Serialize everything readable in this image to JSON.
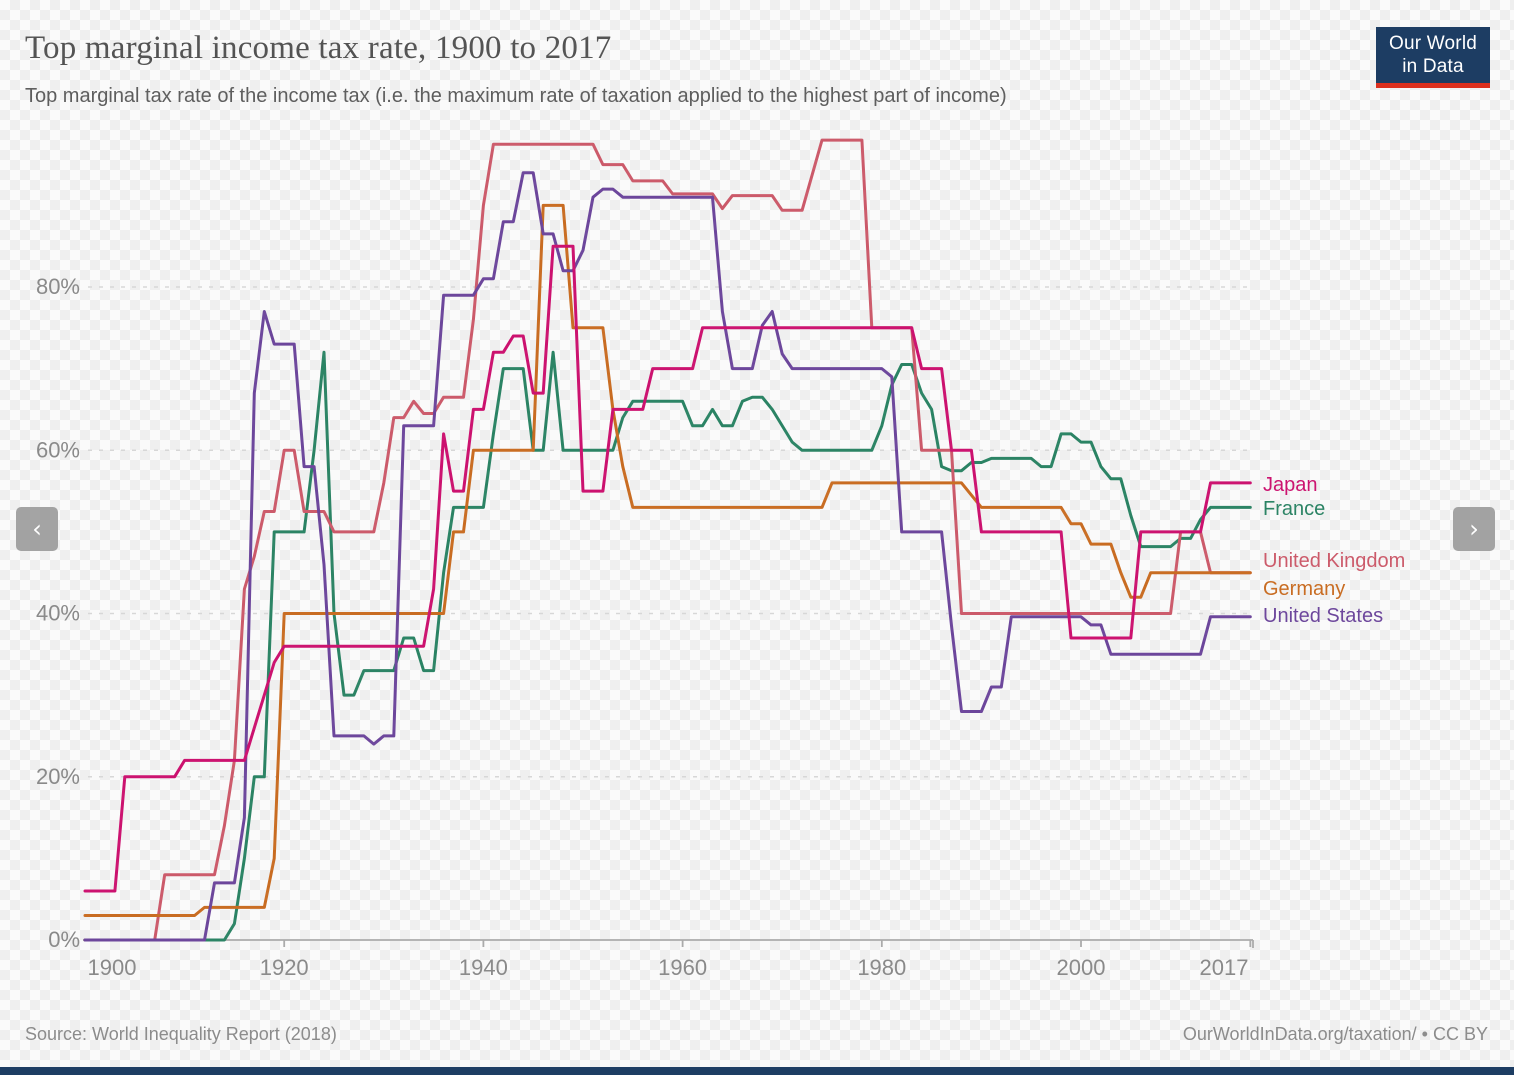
{
  "header": {
    "title": "Top marginal income tax rate, 1900 to 2017",
    "subtitle": "Top marginal tax rate of the income tax (i.e. the maximum rate of taxation applied to the highest part of income)"
  },
  "logo": {
    "line1": "Our World",
    "line2": "in Data",
    "bg_color": "#1d3d63",
    "accent_color": "#dc2f1e"
  },
  "controls": {
    "prev_icon": "‹",
    "next_icon": "›"
  },
  "footer": {
    "source": "Source: World Inequality Report (2018)",
    "credit": "OurWorldInData.org/taxation/ • CC BY"
  },
  "chart_data": {
    "type": "line",
    "title": "Top marginal income tax rate, 1900 to 2017",
    "xlabel": "",
    "ylabel": "",
    "x_range": [
      1900,
      2017
    ],
    "y_range": [
      0,
      100
    ],
    "grid": "dashed-horizontal",
    "legend_position": "end-of-line",
    "y_ticks": [
      {
        "value": 0,
        "label": "0%"
      },
      {
        "value": 20,
        "label": "20%"
      },
      {
        "value": 40,
        "label": "40%"
      },
      {
        "value": 60,
        "label": "60%"
      },
      {
        "value": 80,
        "label": "80%"
      }
    ],
    "x_ticks": [
      {
        "value": 1900,
        "label": "1900"
      },
      {
        "value": 1920,
        "label": "1920"
      },
      {
        "value": 1940,
        "label": "1940"
      },
      {
        "value": 1960,
        "label": "1960"
      },
      {
        "value": 1980,
        "label": "1980"
      },
      {
        "value": 2000,
        "label": "2000"
      },
      {
        "value": 2017,
        "label": "2017"
      }
    ],
    "series": [
      {
        "name": "Japan",
        "color": "#CC1370",
        "points": [
          [
            1900,
            6
          ],
          [
            1903,
            6
          ],
          [
            1904,
            20
          ],
          [
            1909,
            20
          ],
          [
            1910,
            22
          ],
          [
            1916,
            22
          ],
          [
            1917,
            26
          ],
          [
            1918,
            30
          ],
          [
            1919,
            34
          ],
          [
            1920,
            36
          ],
          [
            1934,
            36
          ],
          [
            1935,
            43
          ],
          [
            1936,
            62
          ],
          [
            1937,
            55
          ],
          [
            1938,
            55
          ],
          [
            1939,
            65
          ],
          [
            1940,
            65
          ],
          [
            1941,
            72
          ],
          [
            1942,
            72
          ],
          [
            1943,
            74
          ],
          [
            1944,
            74
          ],
          [
            1945,
            67
          ],
          [
            1946,
            67
          ],
          [
            1947,
            85
          ],
          [
            1949,
            85
          ],
          [
            1950,
            55
          ],
          [
            1952,
            55
          ],
          [
            1953,
            65
          ],
          [
            1956,
            65
          ],
          [
            1957,
            70
          ],
          [
            1961,
            70
          ],
          [
            1962,
            75
          ],
          [
            1983,
            75
          ],
          [
            1984,
            70
          ],
          [
            1986,
            70
          ],
          [
            1987,
            60
          ],
          [
            1989,
            60
          ],
          [
            1990,
            50
          ],
          [
            1998,
            50
          ],
          [
            1999,
            37
          ],
          [
            2005,
            37
          ],
          [
            2006,
            50
          ],
          [
            2012,
            50
          ],
          [
            2013,
            56
          ],
          [
            2017,
            56
          ]
        ]
      },
      {
        "name": "France",
        "color": "#2C8465",
        "points": [
          [
            1900,
            0
          ],
          [
            1914,
            0
          ],
          [
            1915,
            2
          ],
          [
            1916,
            10
          ],
          [
            1917,
            20
          ],
          [
            1918,
            20
          ],
          [
            1919,
            50
          ],
          [
            1922,
            50
          ],
          [
            1923,
            60
          ],
          [
            1924,
            72
          ],
          [
            1925,
            40
          ],
          [
            1926,
            30
          ],
          [
            1927,
            30
          ],
          [
            1928,
            33
          ],
          [
            1931,
            33
          ],
          [
            1932,
            37
          ],
          [
            1933,
            37
          ],
          [
            1934,
            33
          ],
          [
            1935,
            33
          ],
          [
            1936,
            45
          ],
          [
            1937,
            53
          ],
          [
            1940,
            53
          ],
          [
            1941,
            62
          ],
          [
            1942,
            70
          ],
          [
            1944,
            70
          ],
          [
            1945,
            60
          ],
          [
            1946,
            60
          ],
          [
            1947,
            72
          ],
          [
            1948,
            60
          ],
          [
            1953,
            60
          ],
          [
            1954,
            64
          ],
          [
            1955,
            66
          ],
          [
            1960,
            66
          ],
          [
            1961,
            63
          ],
          [
            1962,
            63
          ],
          [
            1963,
            65
          ],
          [
            1964,
            63
          ],
          [
            1965,
            63
          ],
          [
            1966,
            66
          ],
          [
            1967,
            66.5
          ],
          [
            1968,
            66.5
          ],
          [
            1969,
            65
          ],
          [
            1971,
            61
          ],
          [
            1972,
            60
          ],
          [
            1979,
            60
          ],
          [
            1980,
            63
          ],
          [
            1981,
            68
          ],
          [
            1982,
            70.5
          ],
          [
            1983,
            70.5
          ],
          [
            1984,
            67
          ],
          [
            1985,
            65
          ],
          [
            1986,
            58
          ],
          [
            1987,
            57.5
          ],
          [
            1988,
            57.5
          ],
          [
            1989,
            58.5
          ],
          [
            1990,
            58.5
          ],
          [
            1991,
            59
          ],
          [
            1995,
            59
          ],
          [
            1996,
            58
          ],
          [
            1997,
            58
          ],
          [
            1998,
            62
          ],
          [
            1999,
            62
          ],
          [
            2000,
            61
          ],
          [
            2001,
            61
          ],
          [
            2002,
            58
          ],
          [
            2003,
            56.5
          ],
          [
            2004,
            56.5
          ],
          [
            2005,
            52
          ],
          [
            2006,
            48.2
          ],
          [
            2009,
            48.2
          ],
          [
            2010,
            49.2
          ],
          [
            2011,
            49.2
          ],
          [
            2012,
            51.5
          ],
          [
            2013,
            53
          ],
          [
            2017,
            53
          ]
        ]
      },
      {
        "name": "United Kingdom",
        "color": "#CC5B6B",
        "points": [
          [
            1900,
            0
          ],
          [
            1907,
            0
          ],
          [
            1908,
            8
          ],
          [
            1913,
            8
          ],
          [
            1914,
            14
          ],
          [
            1915,
            22
          ],
          [
            1916,
            43
          ],
          [
            1917,
            47
          ],
          [
            1918,
            52.5
          ],
          [
            1919,
            52.5
          ],
          [
            1920,
            60
          ],
          [
            1921,
            60
          ],
          [
            1922,
            52.5
          ],
          [
            1924,
            52.5
          ],
          [
            1925,
            50
          ],
          [
            1929,
            50
          ],
          [
            1930,
            56
          ],
          [
            1931,
            64
          ],
          [
            1932,
            64
          ],
          [
            1933,
            66
          ],
          [
            1934,
            64.5
          ],
          [
            1935,
            64.5
          ],
          [
            1936,
            66.5
          ],
          [
            1938,
            66.5
          ],
          [
            1939,
            76
          ],
          [
            1940,
            90
          ],
          [
            1941,
            97.5
          ],
          [
            1951,
            97.5
          ],
          [
            1952,
            95
          ],
          [
            1954,
            95
          ],
          [
            1955,
            93
          ],
          [
            1958,
            93
          ],
          [
            1959,
            91.4
          ],
          [
            1963,
            91.4
          ],
          [
            1964,
            89.6
          ],
          [
            1965,
            91.2
          ],
          [
            1969,
            91.2
          ],
          [
            1970,
            89.4
          ],
          [
            1972,
            89.4
          ],
          [
            1974,
            98
          ],
          [
            1978,
            98
          ],
          [
            1979,
            75
          ],
          [
            1983,
            75
          ],
          [
            1984,
            60
          ],
          [
            1987,
            60
          ],
          [
            1988,
            40
          ],
          [
            2009,
            40
          ],
          [
            2010,
            50
          ],
          [
            2012,
            50
          ],
          [
            2013,
            45
          ],
          [
            2017,
            45
          ]
        ]
      },
      {
        "name": "Germany",
        "color": "#C96D23",
        "points": [
          [
            1900,
            3
          ],
          [
            1911,
            3
          ],
          [
            1912,
            4
          ],
          [
            1918,
            4
          ],
          [
            1919,
            10
          ],
          [
            1920,
            40
          ],
          [
            1936,
            40
          ],
          [
            1937,
            50
          ],
          [
            1938,
            50
          ],
          [
            1939,
            60
          ],
          [
            1945,
            60
          ],
          [
            1946,
            90
          ],
          [
            1948,
            90
          ],
          [
            1949,
            75
          ],
          [
            1952,
            75
          ],
          [
            1953,
            65
          ],
          [
            1954,
            58
          ],
          [
            1955,
            53
          ],
          [
            1974,
            53
          ],
          [
            1975,
            56
          ],
          [
            1988,
            56
          ],
          [
            1990,
            53
          ],
          [
            1998,
            53
          ],
          [
            1999,
            51
          ],
          [
            2000,
            51
          ],
          [
            2001,
            48.5
          ],
          [
            2003,
            48.5
          ],
          [
            2004,
            45
          ],
          [
            2005,
            42
          ],
          [
            2006,
            42
          ],
          [
            2007,
            45
          ],
          [
            2017,
            45
          ]
        ]
      },
      {
        "name": "United States",
        "color": "#6D479C",
        "points": [
          [
            1900,
            0
          ],
          [
            1912,
            0
          ],
          [
            1913,
            7
          ],
          [
            1915,
            7
          ],
          [
            1916,
            15
          ],
          [
            1917,
            67
          ],
          [
            1918,
            77
          ],
          [
            1919,
            73
          ],
          [
            1921,
            73
          ],
          [
            1922,
            58
          ],
          [
            1923,
            58
          ],
          [
            1924,
            46
          ],
          [
            1925,
            25
          ],
          [
            1928,
            25
          ],
          [
            1929,
            24
          ],
          [
            1930,
            25
          ],
          [
            1931,
            25
          ],
          [
            1932,
            63
          ],
          [
            1935,
            63
          ],
          [
            1936,
            79
          ],
          [
            1939,
            79
          ],
          [
            1940,
            81
          ],
          [
            1941,
            81
          ],
          [
            1942,
            88
          ],
          [
            1943,
            88
          ],
          [
            1944,
            94
          ],
          [
            1945,
            94
          ],
          [
            1946,
            86.5
          ],
          [
            1947,
            86.5
          ],
          [
            1948,
            82
          ],
          [
            1949,
            82
          ],
          [
            1950,
            84.5
          ],
          [
            1951,
            91
          ],
          [
            1952,
            92
          ],
          [
            1953,
            92
          ],
          [
            1954,
            91
          ],
          [
            1963,
            91
          ],
          [
            1964,
            77
          ],
          [
            1965,
            70
          ],
          [
            1967,
            70
          ],
          [
            1968,
            75.3
          ],
          [
            1969,
            77
          ],
          [
            1970,
            71.8
          ],
          [
            1971,
            70
          ],
          [
            1980,
            70
          ],
          [
            1981,
            69
          ],
          [
            1982,
            50
          ],
          [
            1986,
            50
          ],
          [
            1987,
            38.5
          ],
          [
            1988,
            28
          ],
          [
            1990,
            28
          ],
          [
            1991,
            31
          ],
          [
            1992,
            31
          ],
          [
            1993,
            39.6
          ],
          [
            2000,
            39.6
          ],
          [
            2001,
            38.6
          ],
          [
            2002,
            38.6
          ],
          [
            2003,
            35
          ],
          [
            2012,
            35
          ],
          [
            2013,
            39.6
          ],
          [
            2017,
            39.6
          ]
        ]
      }
    ]
  }
}
